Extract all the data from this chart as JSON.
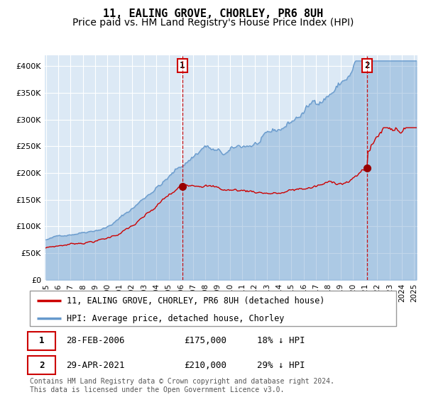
{
  "title": "11, EALING GROVE, CHORLEY, PR6 8UH",
  "subtitle": "Price paid vs. HM Land Registry's House Price Index (HPI)",
  "ylim": [
    0,
    420000
  ],
  "yticks": [
    0,
    50000,
    100000,
    150000,
    200000,
    250000,
    300000,
    350000,
    400000
  ],
  "ytick_labels": [
    "£0",
    "£50K",
    "£100K",
    "£150K",
    "£200K",
    "£250K",
    "£300K",
    "£350K",
    "£400K"
  ],
  "plot_bg_color": "#dce9f5",
  "grid_color": "#ffffff",
  "red_line_color": "#cc0000",
  "blue_line_color": "#6699cc",
  "marker_color": "#990000",
  "vline_color": "#cc0000",
  "idx1": 133,
  "idx2": 313,
  "price1": 175000,
  "price2": 210000,
  "legend_line1": "11, EALING GROVE, CHORLEY, PR6 8UH (detached house)",
  "legend_line2": "HPI: Average price, detached house, Chorley",
  "row1_date": "28-FEB-2006",
  "row1_price": "£175,000",
  "row1_hpi": "18% ↓ HPI",
  "row2_date": "29-APR-2021",
  "row2_price": "£210,000",
  "row2_hpi": "29% ↓ HPI",
  "footer": "Contains HM Land Registry data © Crown copyright and database right 2024.\nThis data is licensed under the Open Government Licence v3.0.",
  "title_fontsize": 11,
  "subtitle_fontsize": 10,
  "tick_fontsize": 8,
  "legend_fontsize": 8.5,
  "footer_fontsize": 7
}
